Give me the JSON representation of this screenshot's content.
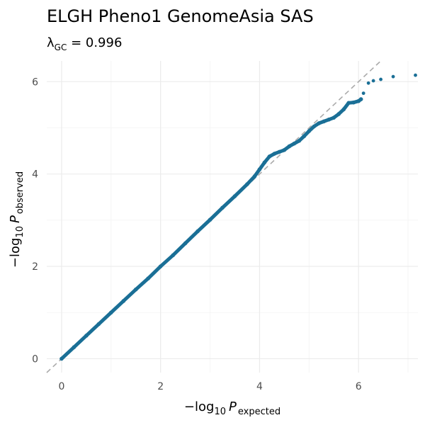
{
  "chart_data": {
    "type": "scatter",
    "title": "ELGH Pheno1 GenomeAsia SAS",
    "subtitle": {
      "prefix": "λ",
      "sub": "GC",
      "suffix": " = 0.996"
    },
    "xlabel": {
      "prefix": "−log",
      "base": "10",
      "symbol": "P",
      "sub": "expected"
    },
    "ylabel": {
      "prefix": "−log",
      "base": "10",
      "symbol": "P",
      "sub": "observed"
    },
    "xlim": [
      -0.3,
      7.2
    ],
    "ylim": [
      -0.3,
      6.45
    ],
    "x_ticks": [
      0,
      2,
      4,
      6
    ],
    "y_ticks": [
      0,
      2,
      4,
      6
    ],
    "grid": true,
    "reference_line": {
      "slope": 1,
      "intercept": 0,
      "color": "#aaaaaa",
      "style": "dashed"
    },
    "point_color": "#1a6f96",
    "points": [
      [
        0,
        0
      ],
      [
        0.25,
        0.25
      ],
      [
        0.5,
        0.5
      ],
      [
        0.75,
        0.75
      ],
      [
        1.0,
        1.0
      ],
      [
        1.25,
        1.25
      ],
      [
        1.5,
        1.5
      ],
      [
        1.75,
        1.74
      ],
      [
        2.0,
        2.0
      ],
      [
        2.25,
        2.24
      ],
      [
        2.5,
        2.5
      ],
      [
        2.75,
        2.76
      ],
      [
        3.0,
        3.01
      ],
      [
        3.25,
        3.27
      ],
      [
        3.5,
        3.52
      ],
      [
        3.75,
        3.78
      ],
      [
        3.9,
        3.95
      ],
      [
        4.0,
        4.1
      ],
      [
        4.1,
        4.25
      ],
      [
        4.2,
        4.38
      ],
      [
        4.3,
        4.44
      ],
      [
        4.4,
        4.48
      ],
      [
        4.5,
        4.52
      ],
      [
        4.6,
        4.6
      ],
      [
        4.7,
        4.66
      ],
      [
        4.8,
        4.72
      ],
      [
        4.9,
        4.82
      ],
      [
        5.0,
        4.93
      ],
      [
        5.1,
        5.03
      ],
      [
        5.2,
        5.1
      ],
      [
        5.3,
        5.14
      ],
      [
        5.4,
        5.18
      ],
      [
        5.5,
        5.22
      ],
      [
        5.6,
        5.3
      ],
      [
        5.7,
        5.4
      ],
      [
        5.8,
        5.54
      ],
      [
        5.9,
        5.55
      ],
      [
        6.0,
        5.58
      ],
      [
        6.05,
        5.62
      ],
      [
        6.1,
        5.75
      ],
      [
        6.2,
        5.97
      ],
      [
        6.3,
        6.02
      ],
      [
        6.45,
        6.05
      ],
      [
        6.7,
        6.11
      ],
      [
        7.15,
        6.14
      ]
    ]
  }
}
